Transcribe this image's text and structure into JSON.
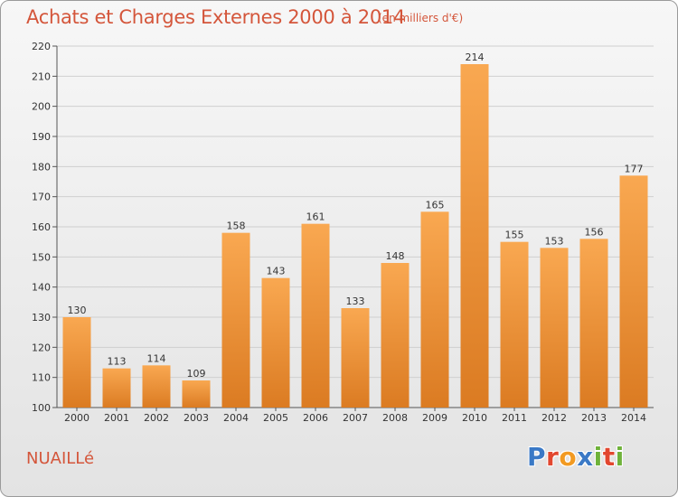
{
  "header": {
    "title": "Achats et Charges Externes 2000 à 2014",
    "subtitle": "(en milliers d'€)"
  },
  "footer": {
    "town": "NUAILLé",
    "logo": [
      "P",
      "r",
      "o",
      "x",
      "i",
      "t",
      "i"
    ]
  },
  "colors": {
    "bar_top": "#f9a851",
    "bar_bottom": "#db7b22",
    "text_accent": "#d4563b",
    "logo": [
      "#3a79c6",
      "#e2472f",
      "#f29a22",
      "#3a79c6",
      "#6fb23a",
      "#e2472f",
      "#6fb23a"
    ]
  },
  "chart_data": {
    "type": "bar",
    "title": "Achats et Charges Externes 2000 à 2014",
    "subtitle": "(en milliers d'€)",
    "categories": [
      "2000",
      "2001",
      "2002",
      "2003",
      "2004",
      "2005",
      "2006",
      "2007",
      "2008",
      "2009",
      "2010",
      "2011",
      "2012",
      "2013",
      "2014"
    ],
    "values": [
      130,
      113,
      114,
      109,
      158,
      143,
      161,
      133,
      148,
      165,
      214,
      155,
      153,
      156,
      177
    ],
    "ylim": [
      100,
      220
    ],
    "yticks": [
      100,
      110,
      120,
      130,
      140,
      150,
      160,
      170,
      180,
      190,
      200,
      210,
      220
    ],
    "grid": true,
    "xlabel": "",
    "ylabel": ""
  }
}
